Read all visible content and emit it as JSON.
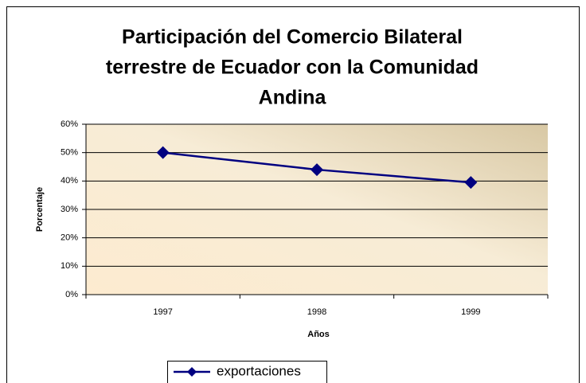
{
  "chart_data": {
    "type": "line",
    "title": [
      "Participación del Comercio Bilateral",
      "terrestre de Ecuador con la Comunidad",
      "Andina"
    ],
    "x_label": "Años",
    "y_label": "Porcentaje",
    "categories": [
      "1997",
      "1998",
      "1999"
    ],
    "series": [
      {
        "name": "exportaciones",
        "color": "#000080",
        "values": [
          50,
          44,
          39.5
        ]
      }
    ],
    "ylim": [
      0,
      60
    ],
    "yticks": [
      {
        "value": 0,
        "label": "0%"
      },
      {
        "value": 10,
        "label": "10%"
      },
      {
        "value": 20,
        "label": "20%"
      },
      {
        "value": 30,
        "label": "30%"
      },
      {
        "value": 40,
        "label": "40%"
      },
      {
        "value": 50,
        "label": "50%"
      },
      {
        "value": 60,
        "label": "60%"
      }
    ],
    "grid": true,
    "legend": "bottom"
  }
}
